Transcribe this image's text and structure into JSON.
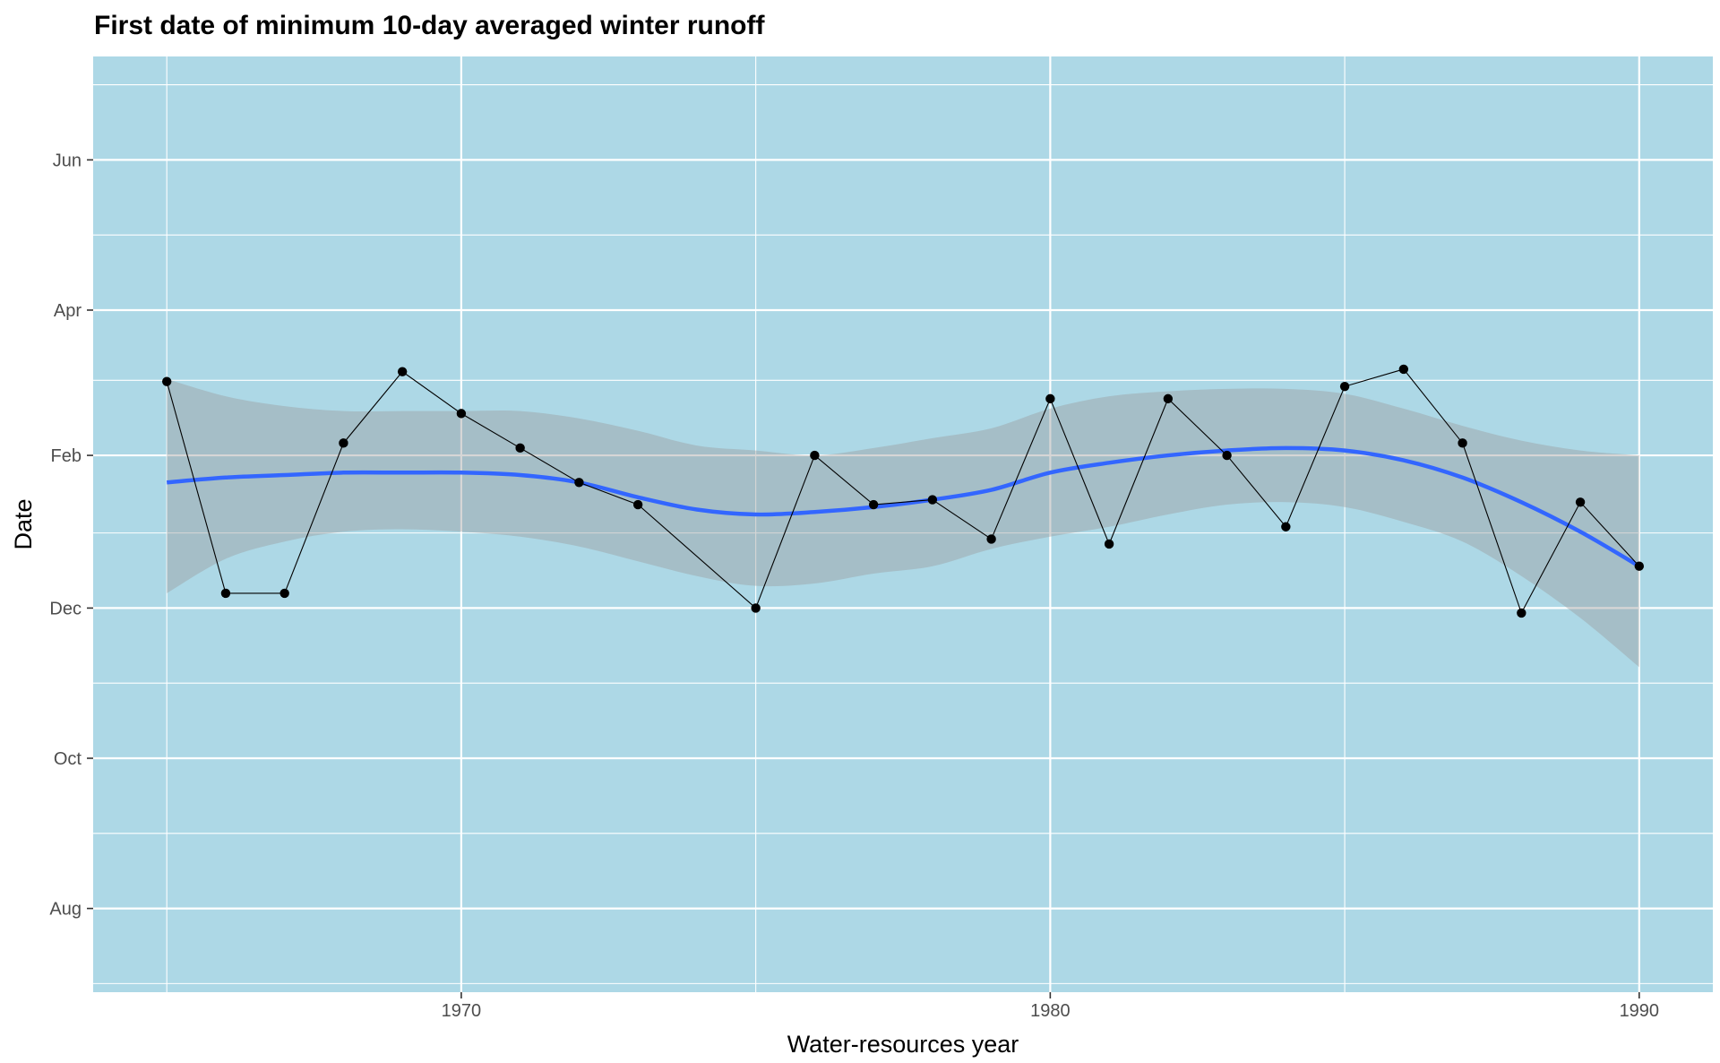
{
  "chart_data": {
    "type": "line",
    "title": "First date of minimum 10-day averaged winter runoff",
    "xlabel": "Water-resources year",
    "ylabel": "Date",
    "xlim": [
      1963.75,
      1991.25
    ],
    "ylim": [
      "1900-06-28",
      "1901-07-13"
    ],
    "x_ticks": [
      1970,
      1980,
      1990
    ],
    "x_tick_labels": [
      "1970",
      "1980",
      "1990"
    ],
    "y_ticks": [
      "1900-08-01",
      "1900-10-01",
      "1900-12-01",
      "1901-02-01",
      "1901-04-01",
      "1901-06-01"
    ],
    "y_tick_labels": [
      "Aug",
      "Oct",
      "Dec",
      "Feb",
      "Apr",
      "Jun"
    ],
    "grid": true,
    "panel_background": "#ADD8E6",
    "series": [
      {
        "kind": "points-and-line",
        "color": "#000000",
        "points": [
          {
            "x": 1965,
            "y": "1901-03-03"
          },
          {
            "x": 1966,
            "y": "1900-12-07"
          },
          {
            "x": 1967,
            "y": "1900-12-07"
          },
          {
            "x": 1968,
            "y": "1901-02-06"
          },
          {
            "x": 1969,
            "y": "1901-03-07"
          },
          {
            "x": 1970,
            "y": "1901-02-18"
          },
          {
            "x": 1971,
            "y": "1901-02-04"
          },
          {
            "x": 1972,
            "y": "1901-01-21"
          },
          {
            "x": 1973,
            "y": "1901-01-12"
          },
          {
            "x": 1975,
            "y": "1900-12-01"
          },
          {
            "x": 1976,
            "y": "1901-02-01"
          },
          {
            "x": 1977,
            "y": "1901-01-12"
          },
          {
            "x": 1978,
            "y": "1901-01-14"
          },
          {
            "x": 1979,
            "y": "1900-12-29"
          },
          {
            "x": 1980,
            "y": "1901-02-24"
          },
          {
            "x": 1981,
            "y": "1900-12-27"
          },
          {
            "x": 1982,
            "y": "1901-02-24"
          },
          {
            "x": 1983,
            "y": "1901-02-01"
          },
          {
            "x": 1984,
            "y": "1901-01-03"
          },
          {
            "x": 1985,
            "y": "1901-03-01"
          },
          {
            "x": 1986,
            "y": "1901-03-08"
          },
          {
            "x": 1987,
            "y": "1901-02-06"
          },
          {
            "x": 1988,
            "y": "1900-11-29"
          },
          {
            "x": 1989,
            "y": "1901-01-13"
          },
          {
            "x": 1990,
            "y": "1900-12-18"
          }
        ]
      },
      {
        "kind": "smooth",
        "color": "#3366FF",
        "ribbon_color": "#999999",
        "points": [
          {
            "x": 1965,
            "y": "1901-01-21",
            "lo": "1900-12-07",
            "hi": "1901-03-04"
          },
          {
            "x": 1966,
            "y": "1901-01-23",
            "lo": "1900-12-21",
            "hi": "1901-02-25"
          },
          {
            "x": 1967,
            "y": "1901-01-24",
            "lo": "1900-12-28",
            "hi": "1901-02-21"
          },
          {
            "x": 1968,
            "y": "1901-01-25",
            "lo": "1901-01-01",
            "hi": "1901-02-19"
          },
          {
            "x": 1969,
            "y": "1901-01-25",
            "lo": "1901-01-02",
            "hi": "1901-02-19"
          },
          {
            "x": 1970,
            "y": "1901-01-25",
            "lo": "1901-01-01",
            "hi": "1901-02-19"
          },
          {
            "x": 1971,
            "y": "1901-01-24",
            "lo": "1900-12-30",
            "hi": "1901-02-19"
          },
          {
            "x": 1972,
            "y": "1901-01-21",
            "lo": "1900-12-26",
            "hi": "1901-02-16"
          },
          {
            "x": 1973,
            "y": "1901-01-15",
            "lo": "1900-12-20",
            "hi": "1901-02-11"
          },
          {
            "x": 1974,
            "y": "1901-01-10",
            "lo": "1900-12-14",
            "hi": "1901-02-05"
          },
          {
            "x": 1975,
            "y": "1901-01-08",
            "lo": "1900-12-10",
            "hi": "1901-02-03"
          },
          {
            "x": 1976,
            "y": "1901-01-09",
            "lo": "1900-12-11",
            "hi": "1901-02-01"
          },
          {
            "x": 1977,
            "y": "1901-01-11",
            "lo": "1900-12-15",
            "hi": "1901-02-04"
          },
          {
            "x": 1978,
            "y": "1901-01-14",
            "lo": "1900-12-18",
            "hi": "1901-02-08"
          },
          {
            "x": 1979,
            "y": "1901-01-18",
            "lo": "1900-12-25",
            "hi": "1901-02-12"
          },
          {
            "x": 1980,
            "y": "1901-01-25",
            "lo": "1900-12-30",
            "hi": "1901-02-20"
          },
          {
            "x": 1981,
            "y": "1901-01-29",
            "lo": "1901-01-03",
            "hi": "1901-02-25"
          },
          {
            "x": 1982,
            "y": "1901-02-01",
            "lo": "1901-01-08",
            "hi": "1901-02-27"
          },
          {
            "x": 1983,
            "y": "1901-02-03",
            "lo": "1901-01-12",
            "hi": "1901-02-28"
          },
          {
            "x": 1984,
            "y": "1901-02-04",
            "lo": "1901-01-13",
            "hi": "1901-02-28"
          },
          {
            "x": 1985,
            "y": "1901-02-03",
            "lo": "1901-01-11",
            "hi": "1901-02-26"
          },
          {
            "x": 1986,
            "y": "1901-01-30",
            "lo": "1901-01-05",
            "hi": "1901-02-20"
          },
          {
            "x": 1987,
            "y": "1901-01-23",
            "lo": "1900-12-28",
            "hi": "1901-02-13"
          },
          {
            "x": 1988,
            "y": "1901-01-13",
            "lo": "1900-12-14",
            "hi": "1901-02-07"
          },
          {
            "x": 1989,
            "y": "1901-01-01",
            "lo": "1900-11-27",
            "hi": "1901-02-03"
          },
          {
            "x": 1990,
            "y": "1900-12-18",
            "lo": "1900-11-07",
            "hi": "1901-02-01"
          }
        ]
      }
    ]
  }
}
